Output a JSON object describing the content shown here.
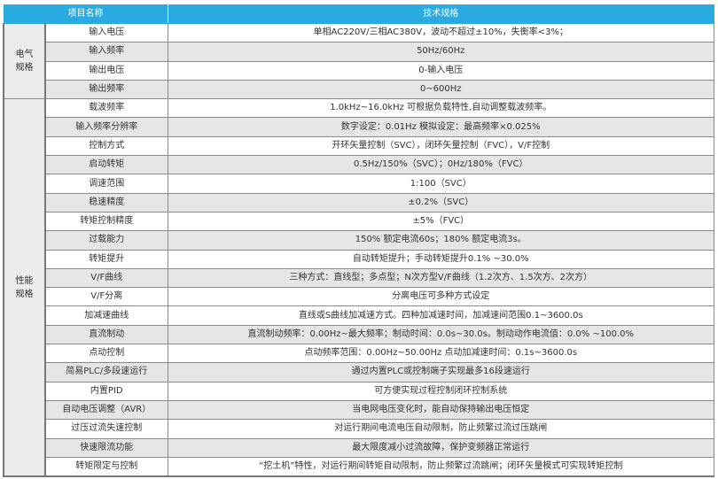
{
  "header": {
    "col_item": "项目名称",
    "col_spec": "技术规格",
    "color": "#29abe2"
  },
  "groups": [
    {
      "label": "电气\n规格",
      "rows": [
        {
          "name": "输入电压",
          "value": "单相AC220V/三相AC380V，波动不超过±10%，失衡率<3%；",
          "shaded": false
        },
        {
          "name": "输入频率",
          "value": "50Hz/60Hz",
          "shaded": true
        },
        {
          "name": "输出电压",
          "value": "0-输入电压",
          "shaded": false
        },
        {
          "name": "输出频率",
          "value": "0~600Hz",
          "shaded": true
        }
      ]
    },
    {
      "label": "性能\n规格",
      "rows": [
        {
          "name": "载波频率",
          "value": "1.0kHz~16.0kHz 可根据负载特性,自动调整载波频率。",
          "shaded": false
        },
        {
          "name": "输入频率分辨率",
          "value": "数字设定：0.01Hz 模拟设定：最高频率×0.025%",
          "shaded": true
        },
        {
          "name": "控制方式",
          "value": "开环矢量控制（SVC），闭环矢量控制（FVC），V/F控制",
          "shaded": false
        },
        {
          "name": "启动转矩",
          "value": "0.5Hz/150%（SVC）；0Hz/180%（FVC）",
          "shaded": true
        },
        {
          "name": "调速范围",
          "value": "1:100（SVC）",
          "shaded": false
        },
        {
          "name": "稳速精度",
          "value": "±0.2%（SVC）",
          "shaded": true
        },
        {
          "name": "转矩控制精度",
          "value": "±5%（FVC）",
          "shaded": false
        },
        {
          "name": "过载能力",
          "value": "150% 额定电流60s；180% 额定电流3s。",
          "shaded": true
        },
        {
          "name": "转矩提升",
          "value": "自动转矩提升；手动转矩提升0.1% ~30.0%",
          "shaded": false
        },
        {
          "name": "V/F曲线",
          "value": "三种方式：直线型；多点型；N次方型V/F曲线（1.2次方、1.5次方、2次方）",
          "shaded": true
        },
        {
          "name": "V/F分离",
          "value": "分离电压可多种方式设定",
          "shaded": false
        },
        {
          "name": "加减速曲线",
          "value": "直线或S曲线加减速方式。四种加减速时间，加减速间范围0.1~3600.0s",
          "shaded": false
        },
        {
          "name": "直流制动",
          "value": "直流制动频率：0.00Hz~最大频率；制动时间：0.0s~30.0s。制动动作电流值：0.0% ~100.0%",
          "shaded": true
        },
        {
          "name": "点动控制",
          "value": "点动频率范围：0.00Hz~50.00Hz 点动加减速时间：0.1s~3600.0s",
          "shaded": false
        },
        {
          "name": "简易PLC/多段速运行",
          "value": "通过内置PLC或控制端子实现最多16段速运行",
          "shaded": true
        },
        {
          "name": "内置PID",
          "value": "可方便实现过程控制闭环控制系统",
          "shaded": false
        },
        {
          "name": "自动电压调整（AVR）",
          "value": "当电网电压变化时，能自动保持输出电压恒定",
          "shaded": true
        },
        {
          "name": "过压过流失速控制",
          "value": "对运行期间电流电压自动限制，防止频繁过流过压跳闸",
          "shaded": false
        },
        {
          "name": "快速限流功能",
          "value": "最大限度减小过流故障，保护变频器正常运行",
          "shaded": true
        },
        {
          "name": "转矩限定与控制",
          "value": "“挖土机”特性，对运行期间转矩自动限制，防止频繁过流跳闸；闭环矢量模式可实现转矩控制",
          "shaded": false
        }
      ]
    }
  ]
}
